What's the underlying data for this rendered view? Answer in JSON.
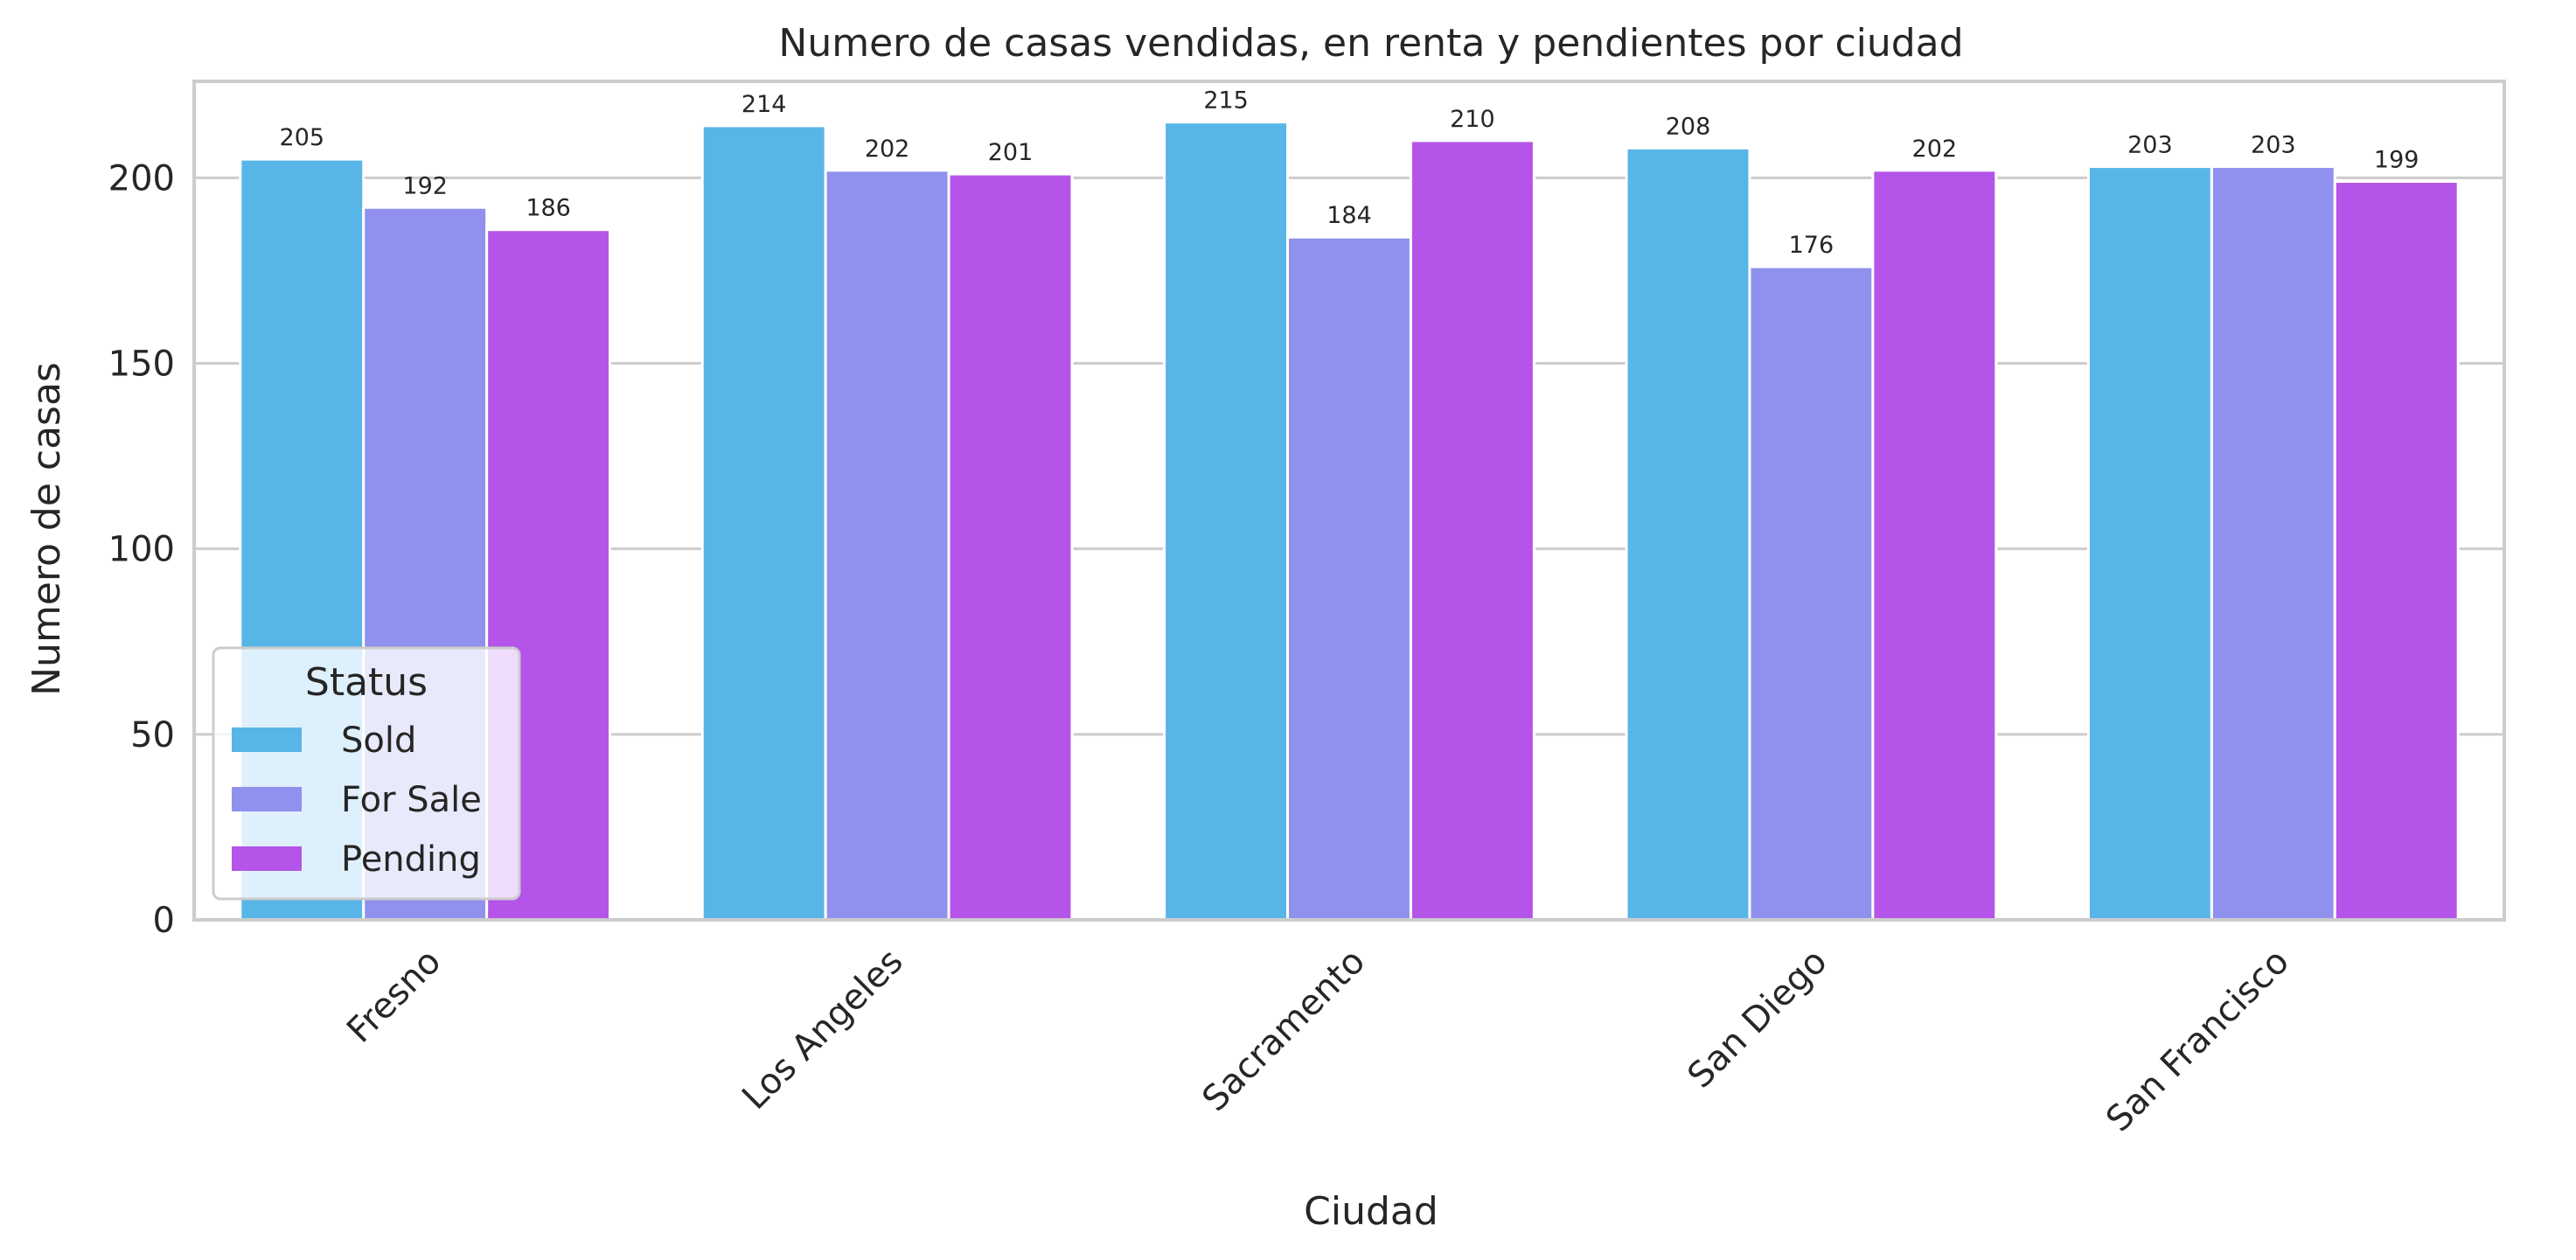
{
  "chart_data": {
    "type": "bar",
    "title": "Numero de casas vendidas, en renta y pendientes por ciudad",
    "xlabel": "Ciudad",
    "ylabel": "Numero de casas",
    "categories": [
      "Fresno",
      "Los Angeles",
      "Sacramento",
      "San Diego",
      "San Francisco"
    ],
    "series": [
      {
        "name": "Sold",
        "color": "#58b5e8",
        "values": [
          205,
          214,
          215,
          208,
          203
        ]
      },
      {
        "name": "For Sale",
        "color": "#9090ee",
        "values": [
          192,
          202,
          184,
          176,
          203
        ]
      },
      {
        "name": "Pending",
        "color": "#b554e8",
        "values": [
          186,
          201,
          210,
          202,
          199
        ]
      }
    ],
    "ylim": [
      0,
      226
    ],
    "yticks": [
      0,
      50,
      100,
      150,
      200
    ],
    "grid": true,
    "legend": {
      "title": "Status",
      "position": "bottom-left"
    }
  }
}
